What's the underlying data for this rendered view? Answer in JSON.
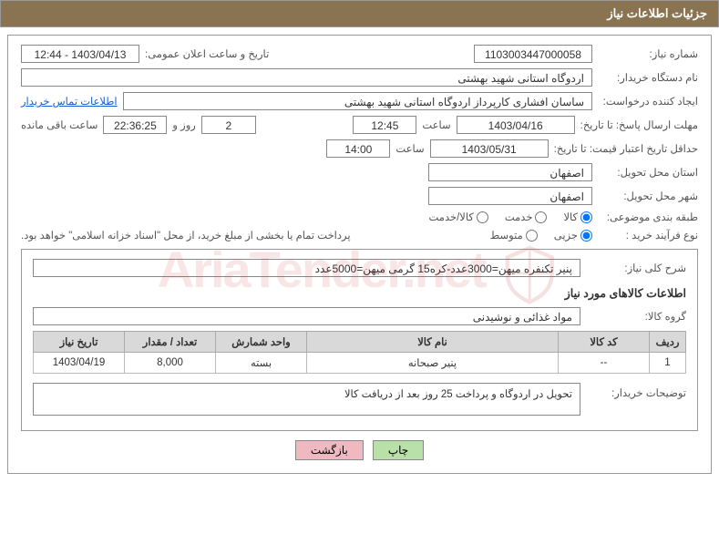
{
  "header": {
    "title": "جزئیات اطلاعات نیاز"
  },
  "fields": {
    "need_no_label": "شماره نیاز:",
    "need_no": "1103003447000058",
    "announce_label": "تاریخ و ساعت اعلان عمومی:",
    "announce_val": "1403/04/13 - 12:44",
    "buyer_org_label": "نام دستگاه خریدار:",
    "buyer_org": "اردوگاه استانی شهید بهشتی",
    "requester_label": "ایجاد کننده درخواست:",
    "requester": "ساسان  افشاری کارپرداز اردوگاه استانی شهید بهشتی",
    "contact_link": "اطلاعات تماس خریدار",
    "deadline_label": "مهلت ارسال پاسخ: تا تاریخ:",
    "deadline_date": "1403/04/16",
    "time_label": "ساعت",
    "deadline_time": "12:45",
    "days_count": "2",
    "days_and": "روز و",
    "countdown": "22:36:25",
    "remaining": "ساعت باقی مانده",
    "validity_label": "حداقل تاریخ اعتبار قیمت: تا تاریخ:",
    "validity_date": "1403/05/31",
    "validity_time": "14:00",
    "province_label": "استان محل تحویل:",
    "province": "اصفهان",
    "city_label": "شهر محل تحویل:",
    "city": "اصفهان",
    "category_label": "طبقه بندی موضوعی:",
    "cat_goods": "کالا",
    "cat_service": "خدمت",
    "cat_both": "کالا/خدمت",
    "process_label": "نوع فرآیند خرید :",
    "proc_partial": "جزیی",
    "proc_medium": "متوسط",
    "payment_note": "پرداخت تمام یا بخشی از مبلغ خرید، از محل \"اسناد خزانه اسلامی\" خواهد بود.",
    "summary_label": "شرح کلی نیاز:",
    "summary": "پنیر تکنفره میهن=3000عدد-کره15 گرمی میهن=5000عدد",
    "items_title": "اطلاعات کالاهای مورد نیاز",
    "group_label": "گروه کالا:",
    "group": "مواد غذائی و نوشیدنی",
    "buyer_desc_label": "توضیحات خریدار:",
    "buyer_desc": "تحویل در اردوگاه و پرداخت 25 روز بعد از دریافت کالا"
  },
  "table": {
    "headers": {
      "row": "ردیف",
      "code": "کد کالا",
      "name": "نام کالا",
      "unit": "واحد شمارش",
      "qty": "تعداد / مقدار",
      "date": "تاریخ نیاز"
    },
    "rows": [
      {
        "row": "1",
        "code": "--",
        "name": "پنیر صبحانه",
        "unit": "بسته",
        "qty": "8,000",
        "date": "1403/04/19"
      }
    ]
  },
  "buttons": {
    "print": "چاپ",
    "back": "بازگشت"
  },
  "style": {
    "header_bg": "#8a7350",
    "border": "#999"
  }
}
